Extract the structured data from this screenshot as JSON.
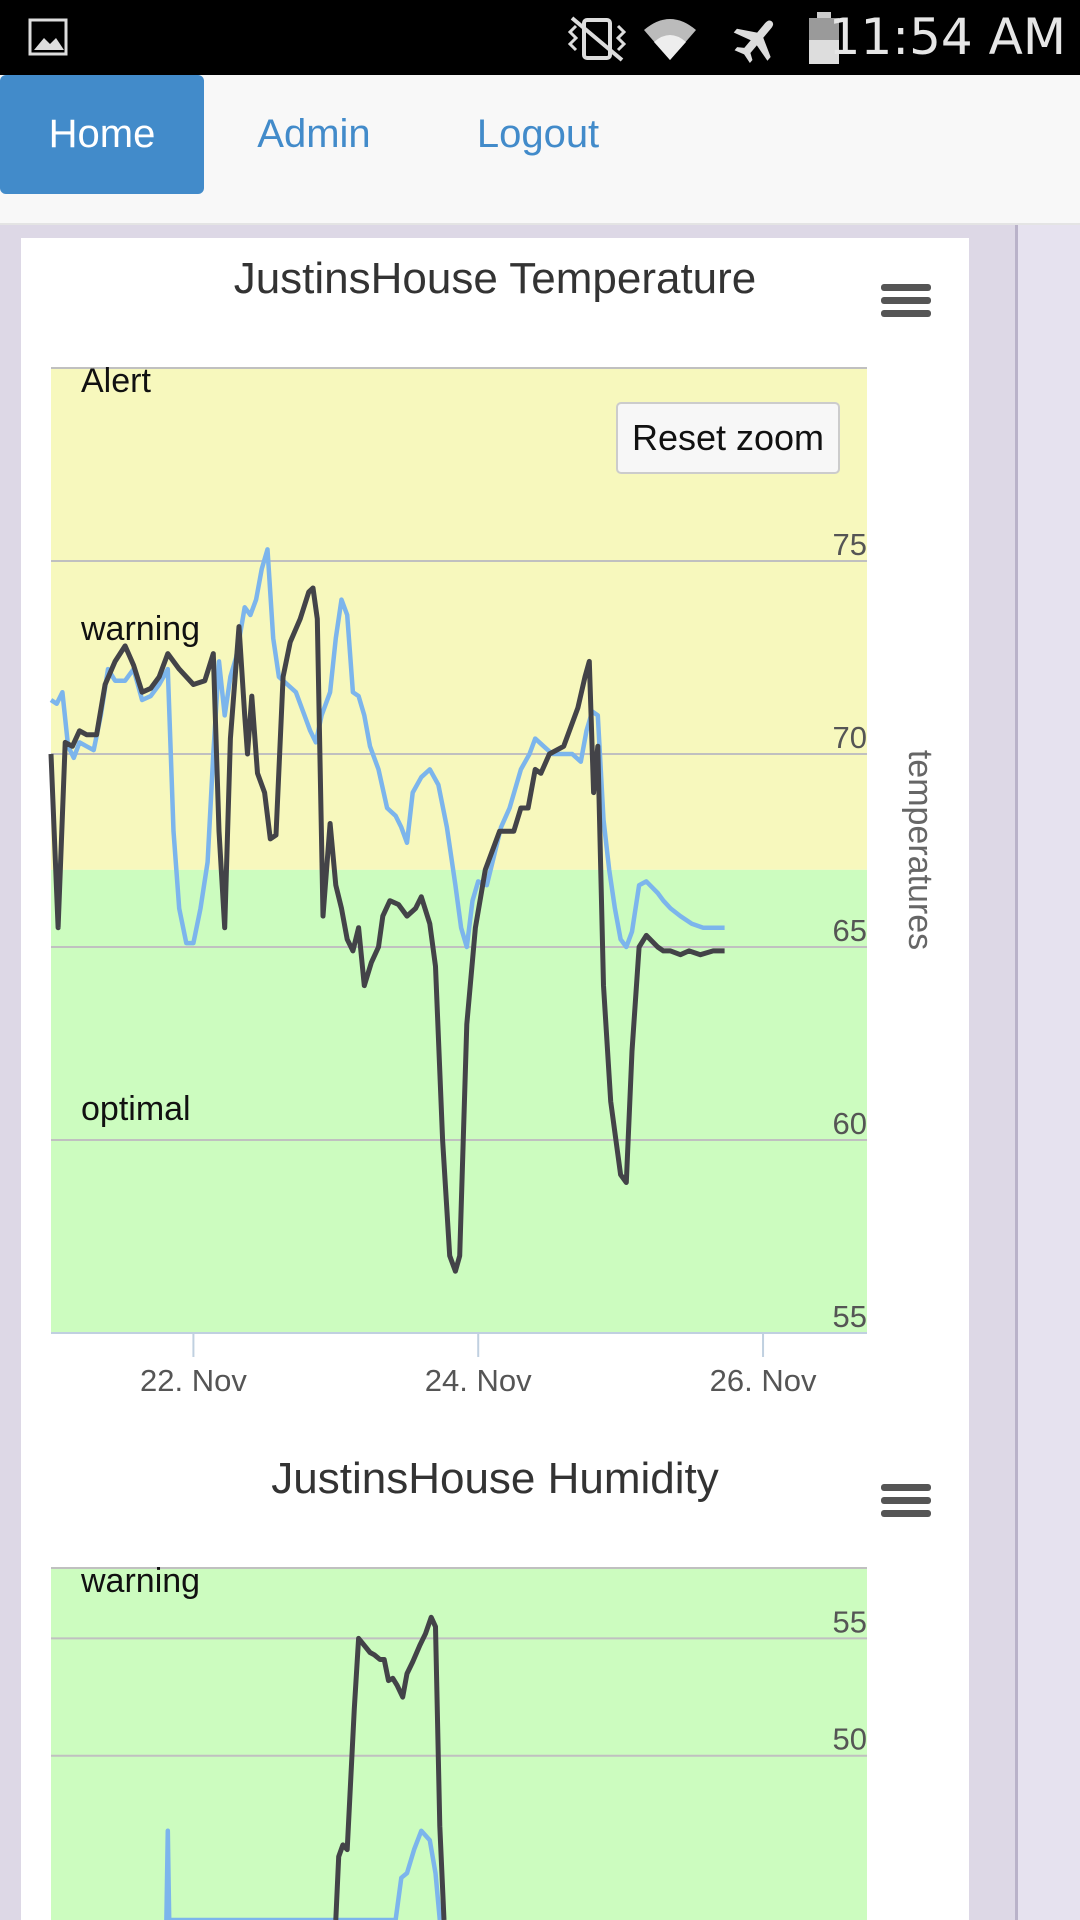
{
  "status_bar": {
    "time": "11:54 AM",
    "icons": [
      "image-icon",
      "vibrate-mute-icon",
      "wifi-icon",
      "airplane-mode-icon",
      "battery-icon"
    ]
  },
  "nav": {
    "items": [
      {
        "label": "Home",
        "active": true
      },
      {
        "label": "Admin",
        "active": false
      },
      {
        "label": "Logout",
        "active": false
      }
    ],
    "accent": "#428bca"
  },
  "reset_zoom_label": "Reset zoom",
  "colors": {
    "alert_band": "#f7f8bd",
    "optimal_band": "#ccfcbf",
    "series_dark": "#434348",
    "series_light": "#7cb5ec"
  },
  "chart_data": [
    {
      "type": "line",
      "title": "JustinsHouse Temperature",
      "ylabel": "temperatures",
      "ylim": [
        55,
        80
      ],
      "y_ticks": [
        55,
        60,
        65,
        70,
        75
      ],
      "x_tick_labels": [
        "22. Nov",
        "24. Nov",
        "26. Nov"
      ],
      "x_ticks": [
        22,
        24,
        26
      ],
      "xlim": [
        21.0,
        26.73
      ],
      "bands": [
        {
          "label": "Alert",
          "from": 75,
          "to": 80
        },
        {
          "label": "warning",
          "from": 67,
          "to": 75
        },
        {
          "label": "optimal",
          "from": 55,
          "to": 67
        }
      ],
      "grid": true,
      "series": [
        {
          "points": [
            [
              21.0,
              70.0
            ],
            [
              21.05,
              65.5
            ],
            [
              21.1,
              70.3
            ],
            [
              21.15,
              70.2
            ],
            [
              21.2,
              70.6
            ],
            [
              21.25,
              70.5
            ],
            [
              21.32,
              70.5
            ],
            [
              21.38,
              71.8
            ],
            [
              21.45,
              72.4
            ],
            [
              21.52,
              72.8
            ],
            [
              21.58,
              72.3
            ],
            [
              21.64,
              71.6
            ],
            [
              21.7,
              71.7
            ],
            [
              21.76,
              72.0
            ],
            [
              21.82,
              72.6
            ],
            [
              21.9,
              72.2
            ],
            [
              22.0,
              71.8
            ],
            [
              22.08,
              71.9
            ],
            [
              22.14,
              72.6
            ],
            [
              22.18,
              68.0
            ],
            [
              22.22,
              65.5
            ],
            [
              22.26,
              70.4
            ],
            [
              22.32,
              73.3
            ],
            [
              22.36,
              71.0
            ],
            [
              22.38,
              70.0
            ],
            [
              22.41,
              71.5
            ],
            [
              22.45,
              69.5
            ],
            [
              22.5,
              69.0
            ],
            [
              22.54,
              67.8
            ],
            [
              22.58,
              67.9
            ],
            [
              22.63,
              72.0
            ],
            [
              22.68,
              72.9
            ],
            [
              22.75,
              73.5
            ],
            [
              22.81,
              74.2
            ],
            [
              22.84,
              74.3
            ],
            [
              22.87,
              73.5
            ],
            [
              22.91,
              65.8
            ],
            [
              22.96,
              68.2
            ],
            [
              23.0,
              66.6
            ],
            [
              23.04,
              66.0
            ],
            [
              23.08,
              65.2
            ],
            [
              23.12,
              64.9
            ],
            [
              23.16,
              65.5
            ],
            [
              23.2,
              64.0
            ],
            [
              23.25,
              64.6
            ],
            [
              23.3,
              65.0
            ],
            [
              23.33,
              65.8
            ],
            [
              23.38,
              66.2
            ],
            [
              23.44,
              66.1
            ],
            [
              23.5,
              65.8
            ],
            [
              23.56,
              66.0
            ],
            [
              23.6,
              66.3
            ],
            [
              23.66,
              65.6
            ],
            [
              23.7,
              64.5
            ],
            [
              23.75,
              60.0
            ],
            [
              23.8,
              57.0
            ],
            [
              23.84,
              56.6
            ],
            [
              23.87,
              57.0
            ],
            [
              23.92,
              63.0
            ],
            [
              23.98,
              65.5
            ],
            [
              24.05,
              67.0
            ],
            [
              24.15,
              68.0
            ],
            [
              24.25,
              68.0
            ],
            [
              24.3,
              68.6
            ],
            [
              24.35,
              68.6
            ],
            [
              24.4,
              69.6
            ],
            [
              24.44,
              69.5
            ],
            [
              24.5,
              70.0
            ],
            [
              24.6,
              70.2
            ],
            [
              24.7,
              71.2
            ],
            [
              24.75,
              72.0
            ],
            [
              24.78,
              72.4
            ],
            [
              24.81,
              69.0
            ],
            [
              24.84,
              70.2
            ],
            [
              24.88,
              64.0
            ],
            [
              24.93,
              61.0
            ],
            [
              25.0,
              59.1
            ],
            [
              25.04,
              58.9
            ],
            [
              25.08,
              62.3
            ],
            [
              25.13,
              65.0
            ],
            [
              25.18,
              65.3
            ],
            [
              25.26,
              65.0
            ],
            [
              25.3,
              64.9
            ],
            [
              25.35,
              64.9
            ],
            [
              25.42,
              64.8
            ],
            [
              25.48,
              64.9
            ],
            [
              25.56,
              64.8
            ],
            [
              25.65,
              64.9
            ],
            [
              25.73,
              64.9
            ]
          ]
        }
      ]
    },
    {
      "type": "line",
      "title": "JustinsHouse Humidity",
      "ylim": [
        43,
        58
      ],
      "y_ticks": [
        50,
        55
      ],
      "bands": [
        {
          "label": "warning",
          "from": 43,
          "to": 58
        }
      ],
      "grid": true,
      "series": [
        {
          "points": [
            [
              23.0,
              43.0
            ],
            [
              23.02,
              45.7
            ],
            [
              23.05,
              46.2
            ],
            [
              23.08,
              46.0
            ],
            [
              23.13,
              52.0
            ],
            [
              23.16,
              55.0
            ],
            [
              23.2,
              54.7
            ],
            [
              23.24,
              54.4
            ],
            [
              23.27,
              54.3
            ],
            [
              23.31,
              54.1
            ],
            [
              23.34,
              54.1
            ],
            [
              23.37,
              53.2
            ],
            [
              23.4,
              53.3
            ],
            [
              23.43,
              53.0
            ],
            [
              23.47,
              52.5
            ],
            [
              23.5,
              53.5
            ],
            [
              23.54,
              54.0
            ],
            [
              23.59,
              54.7
            ],
            [
              23.63,
              55.2
            ],
            [
              23.67,
              55.9
            ],
            [
              23.7,
              55.5
            ],
            [
              23.73,
              47.0
            ],
            [
              23.76,
              43.0
            ]
          ]
        },
        {
          "points": [
            [
              21.81,
              43.0
            ],
            [
              21.82,
              46.8
            ],
            [
              21.83,
              43.0
            ],
            [
              23.42,
              43.0
            ],
            [
              23.46,
              44.8
            ],
            [
              23.5,
              45.0
            ],
            [
              23.55,
              46.0
            ],
            [
              23.6,
              46.8
            ],
            [
              23.66,
              46.4
            ],
            [
              23.7,
              45.0
            ],
            [
              23.73,
              43.0
            ]
          ]
        }
      ]
    }
  ]
}
